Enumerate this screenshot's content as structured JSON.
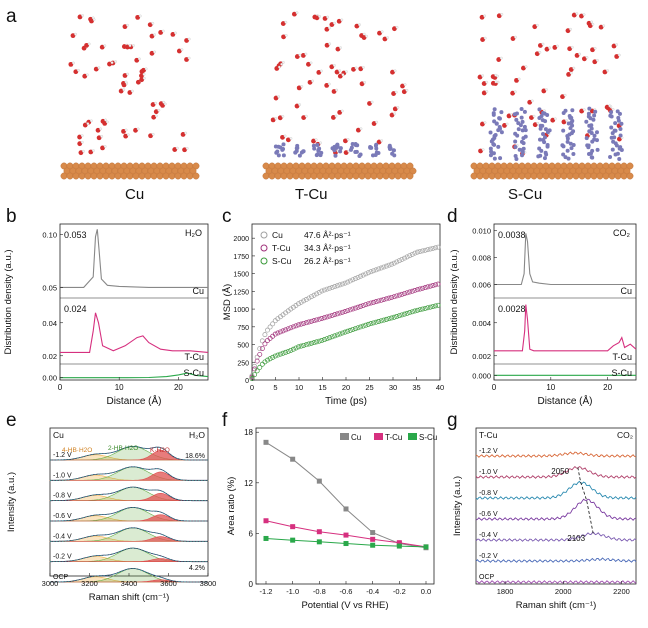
{
  "panel_letters": {
    "a": "a",
    "b": "b",
    "c": "c",
    "d": "d",
    "e": "e",
    "f": "f",
    "g": "g"
  },
  "panel_a": {
    "labels": [
      "Cu",
      "T-Cu",
      "S-Cu"
    ]
  },
  "colors": {
    "cu_gray": "#888888",
    "tcu_magenta": "#d6307f",
    "scu_green": "#2aa84a",
    "cu_slab": "#d88a4a",
    "water_red": "#d53030",
    "ligand_blue": "#7a7ab8",
    "scatter_gray": "#a0a0a0",
    "scatter_purple": "#a0307a",
    "scatter_green": "#3a9a3a",
    "fill_orange": "#f2b24a",
    "fill_red": "#e05050",
    "fill_green": "#6ab04a",
    "fit_teal": "#2ba8a0"
  },
  "chart_data": [
    {
      "panel": "b",
      "type": "line",
      "xlabel": "Distance (Å)",
      "ylabel": "Distribution density (a.u.)",
      "xlim": [
        0,
        25
      ],
      "corner_label": "H2O",
      "subpanels": [
        {
          "name": "Cu",
          "ylim": [
            0.04,
            0.11
          ],
          "yticks": [
            "0.05",
            "0.10"
          ],
          "peak_text": "0.053",
          "x": [
            0,
            4,
            5.6,
            6.0,
            6.3,
            6.6,
            7.0,
            8,
            10,
            15,
            20,
            25
          ],
          "y": [
            0.05,
            0.05,
            0.06,
            0.098,
            0.105,
            0.085,
            0.058,
            0.052,
            0.051,
            0.05,
            0.05,
            0.05
          ]
        },
        {
          "name": "T-Cu",
          "ylim": [
            0.015,
            0.055
          ],
          "yticks": [
            "0.02",
            "0.04"
          ],
          "peak_text": "0.024",
          "x": [
            0,
            5,
            5.6,
            6.0,
            6.5,
            7.2,
            9,
            11,
            13,
            14,
            15,
            17,
            19,
            22,
            25
          ],
          "y": [
            0.022,
            0.022,
            0.035,
            0.046,
            0.04,
            0.026,
            0.023,
            0.026,
            0.031,
            0.032,
            0.028,
            0.024,
            0.023,
            0.023,
            0.022
          ]
        },
        {
          "name": "S-Cu",
          "ylim": [
            -0.002,
            0.012
          ],
          "yticks": [
            "0.00"
          ],
          "peak_text": "",
          "x": [
            0,
            10,
            15,
            18,
            20,
            21.5,
            23,
            25
          ],
          "y": [
            0.0,
            0.0,
            0.0002,
            0.001,
            0.0025,
            0.004,
            0.002,
            0.001
          ]
        }
      ],
      "xticks": [
        "0",
        "10",
        "20"
      ]
    },
    {
      "panel": "c",
      "type": "scatter",
      "xlabel": "Time (ps)",
      "ylabel": "MSD (Å)",
      "xlim": [
        0,
        40
      ],
      "ylim": [
        0,
        2200
      ],
      "xticks": [
        "0",
        "5",
        "10",
        "15",
        "20",
        "25",
        "30",
        "35",
        "40"
      ],
      "yticks": [
        "0",
        "250",
        "500",
        "750",
        "1000",
        "1250",
        "1500",
        "1750",
        "2000"
      ],
      "series": [
        {
          "name": "Cu",
          "label": "Cu",
          "value": "47.6 Å²·ps⁻¹",
          "x": [
            0,
            1,
            2,
            3,
            5,
            8,
            10,
            15,
            20,
            25,
            30,
            35,
            40
          ],
          "y": [
            60,
            300,
            520,
            680,
            840,
            990,
            1080,
            1260,
            1370,
            1520,
            1640,
            1800,
            1880
          ]
        },
        {
          "name": "T-Cu",
          "label": "T-Cu",
          "value": "34.3 Å²·ps⁻¹",
          "x": [
            0,
            1,
            2,
            3,
            5,
            8,
            10,
            15,
            20,
            25,
            30,
            35,
            40
          ],
          "y": [
            40,
            250,
            420,
            540,
            650,
            730,
            780,
            870,
            970,
            1080,
            1170,
            1270,
            1360
          ]
        },
        {
          "name": "S-Cu",
          "label": "S-Cu",
          "value": "26.2 Å²·ps⁻¹",
          "x": [
            0,
            1,
            2,
            3,
            5,
            8,
            10,
            15,
            20,
            25,
            30,
            35,
            40
          ],
          "y": [
            20,
            120,
            210,
            270,
            340,
            410,
            470,
            560,
            680,
            790,
            880,
            980,
            1060
          ]
        }
      ]
    },
    {
      "panel": "d",
      "type": "line",
      "xlabel": "Distance (Å)",
      "ylabel": "Distribution density (a.u.)",
      "xlim": [
        0,
        25
      ],
      "corner_label": "CO2",
      "subpanels": [
        {
          "name": "Cu",
          "ylim": [
            0.005,
            0.0105
          ],
          "yticks": [
            "0.006",
            "0.008",
            "0.010"
          ],
          "peak_text": "0.0038",
          "x": [
            0,
            4.8,
            5.3,
            5.6,
            5.9,
            6.3,
            6.8,
            8,
            10,
            25
          ],
          "y": [
            0.006,
            0.006,
            0.0068,
            0.0098,
            0.0092,
            0.0068,
            0.0062,
            0.0061,
            0.006,
            0.006
          ]
        },
        {
          "name": "T-Cu",
          "ylim": [
            0.0015,
            0.0055
          ],
          "yticks": [
            "0.002",
            "0.004"
          ],
          "peak_text": "0.0028",
          "x": [
            0,
            5.0,
            5.4,
            5.6,
            5.9,
            6.3,
            7,
            20,
            21,
            22,
            22.5,
            23,
            24,
            25
          ],
          "y": [
            0.0023,
            0.0023,
            0.0035,
            0.0051,
            0.0042,
            0.0024,
            0.0023,
            0.0023,
            0.0026,
            0.0028,
            0.0031,
            0.0025,
            0.0027,
            0.0024
          ]
        },
        {
          "name": "S-Cu",
          "ylim": [
            -0.0005,
            0.0012
          ],
          "yticks": [
            "0.000"
          ],
          "peak_text": "",
          "x": [
            0,
            25
          ],
          "y": [
            0.0,
            0.0
          ]
        }
      ],
      "xticks": [
        "0",
        "10",
        "20"
      ]
    },
    {
      "panel": "e",
      "type": "area",
      "xlabel": "Raman shift (cm⁻¹)",
      "ylabel": "Intensity (a.u.)",
      "xlim": [
        3000,
        3800
      ],
      "xticks": [
        "3000",
        "3200",
        "3400",
        "3600",
        "3800"
      ],
      "corner_left": "Cu",
      "corner_right": "H2O",
      "component_labels": [
        "4-HB·H2O",
        "2-HB·H2O",
        "K·H2O"
      ],
      "top_percent": "18.6%",
      "bottom_percent": "4.2%",
      "potentials": [
        "-1.2 V",
        "-1.0 V",
        "-0.8 V",
        "-0.6 V",
        "-0.4 V",
        "-0.2 V",
        "OCP"
      ],
      "k_fraction": [
        0.186,
        0.16,
        0.14,
        0.12,
        0.09,
        0.06,
        0.042
      ]
    },
    {
      "panel": "f",
      "type": "line",
      "xlabel": "Potential (V vs RHE)",
      "ylabel": "Area ratio (%)",
      "xlim": [
        -1.2,
        0.0
      ],
      "ylim": [
        0,
        18.5
      ],
      "xticks": [
        "-1.2",
        "-1.0",
        "-0.8",
        "-0.6",
        "-0.4",
        "-0.2",
        "0.0"
      ],
      "yticks": [
        "0",
        "6",
        "12",
        "18"
      ],
      "categories": [
        -1.2,
        -1.0,
        -0.8,
        -0.6,
        -0.4,
        -0.2,
        0.0
      ],
      "series": [
        {
          "name": "Cu",
          "values": [
            16.8,
            14.8,
            12.2,
            8.9,
            6.1,
            4.8,
            4.3
          ]
        },
        {
          "name": "T-Cu",
          "values": [
            7.5,
            6.8,
            6.2,
            5.8,
            5.3,
            4.9,
            4.4
          ]
        },
        {
          "name": "S-Cu",
          "values": [
            5.4,
            5.2,
            5.0,
            4.8,
            4.6,
            4.5,
            4.4
          ]
        }
      ]
    },
    {
      "panel": "g",
      "type": "line",
      "xlabel": "Raman shift (cm⁻¹)",
      "ylabel": "Intensity (a.u.)",
      "xlim": [
        1700,
        2250
      ],
      "xticks": [
        "1800",
        "2000",
        "2200"
      ],
      "corner_left": "T-Cu",
      "corner_right": "CO2",
      "potentials": [
        "-1.2 V",
        "-1.0 V",
        "-0.8 V",
        "-0.6 V",
        "-0.4 V",
        "-0.2 V",
        "OCP"
      ],
      "peak_labels": [
        "2050",
        "2103"
      ],
      "peak_centers": [
        2040,
        2050,
        2060,
        2080,
        2103,
        2130,
        2200
      ],
      "peak_heights": [
        0.25,
        0.8,
        1.3,
        1.6,
        0.55,
        0.15,
        0.0
      ],
      "trace_colors": [
        "#d86838",
        "#b0406a",
        "#2a8ab0",
        "#7a3aa0",
        "#7a5ab0",
        "#4a6ab8",
        "#a050b0"
      ]
    }
  ]
}
